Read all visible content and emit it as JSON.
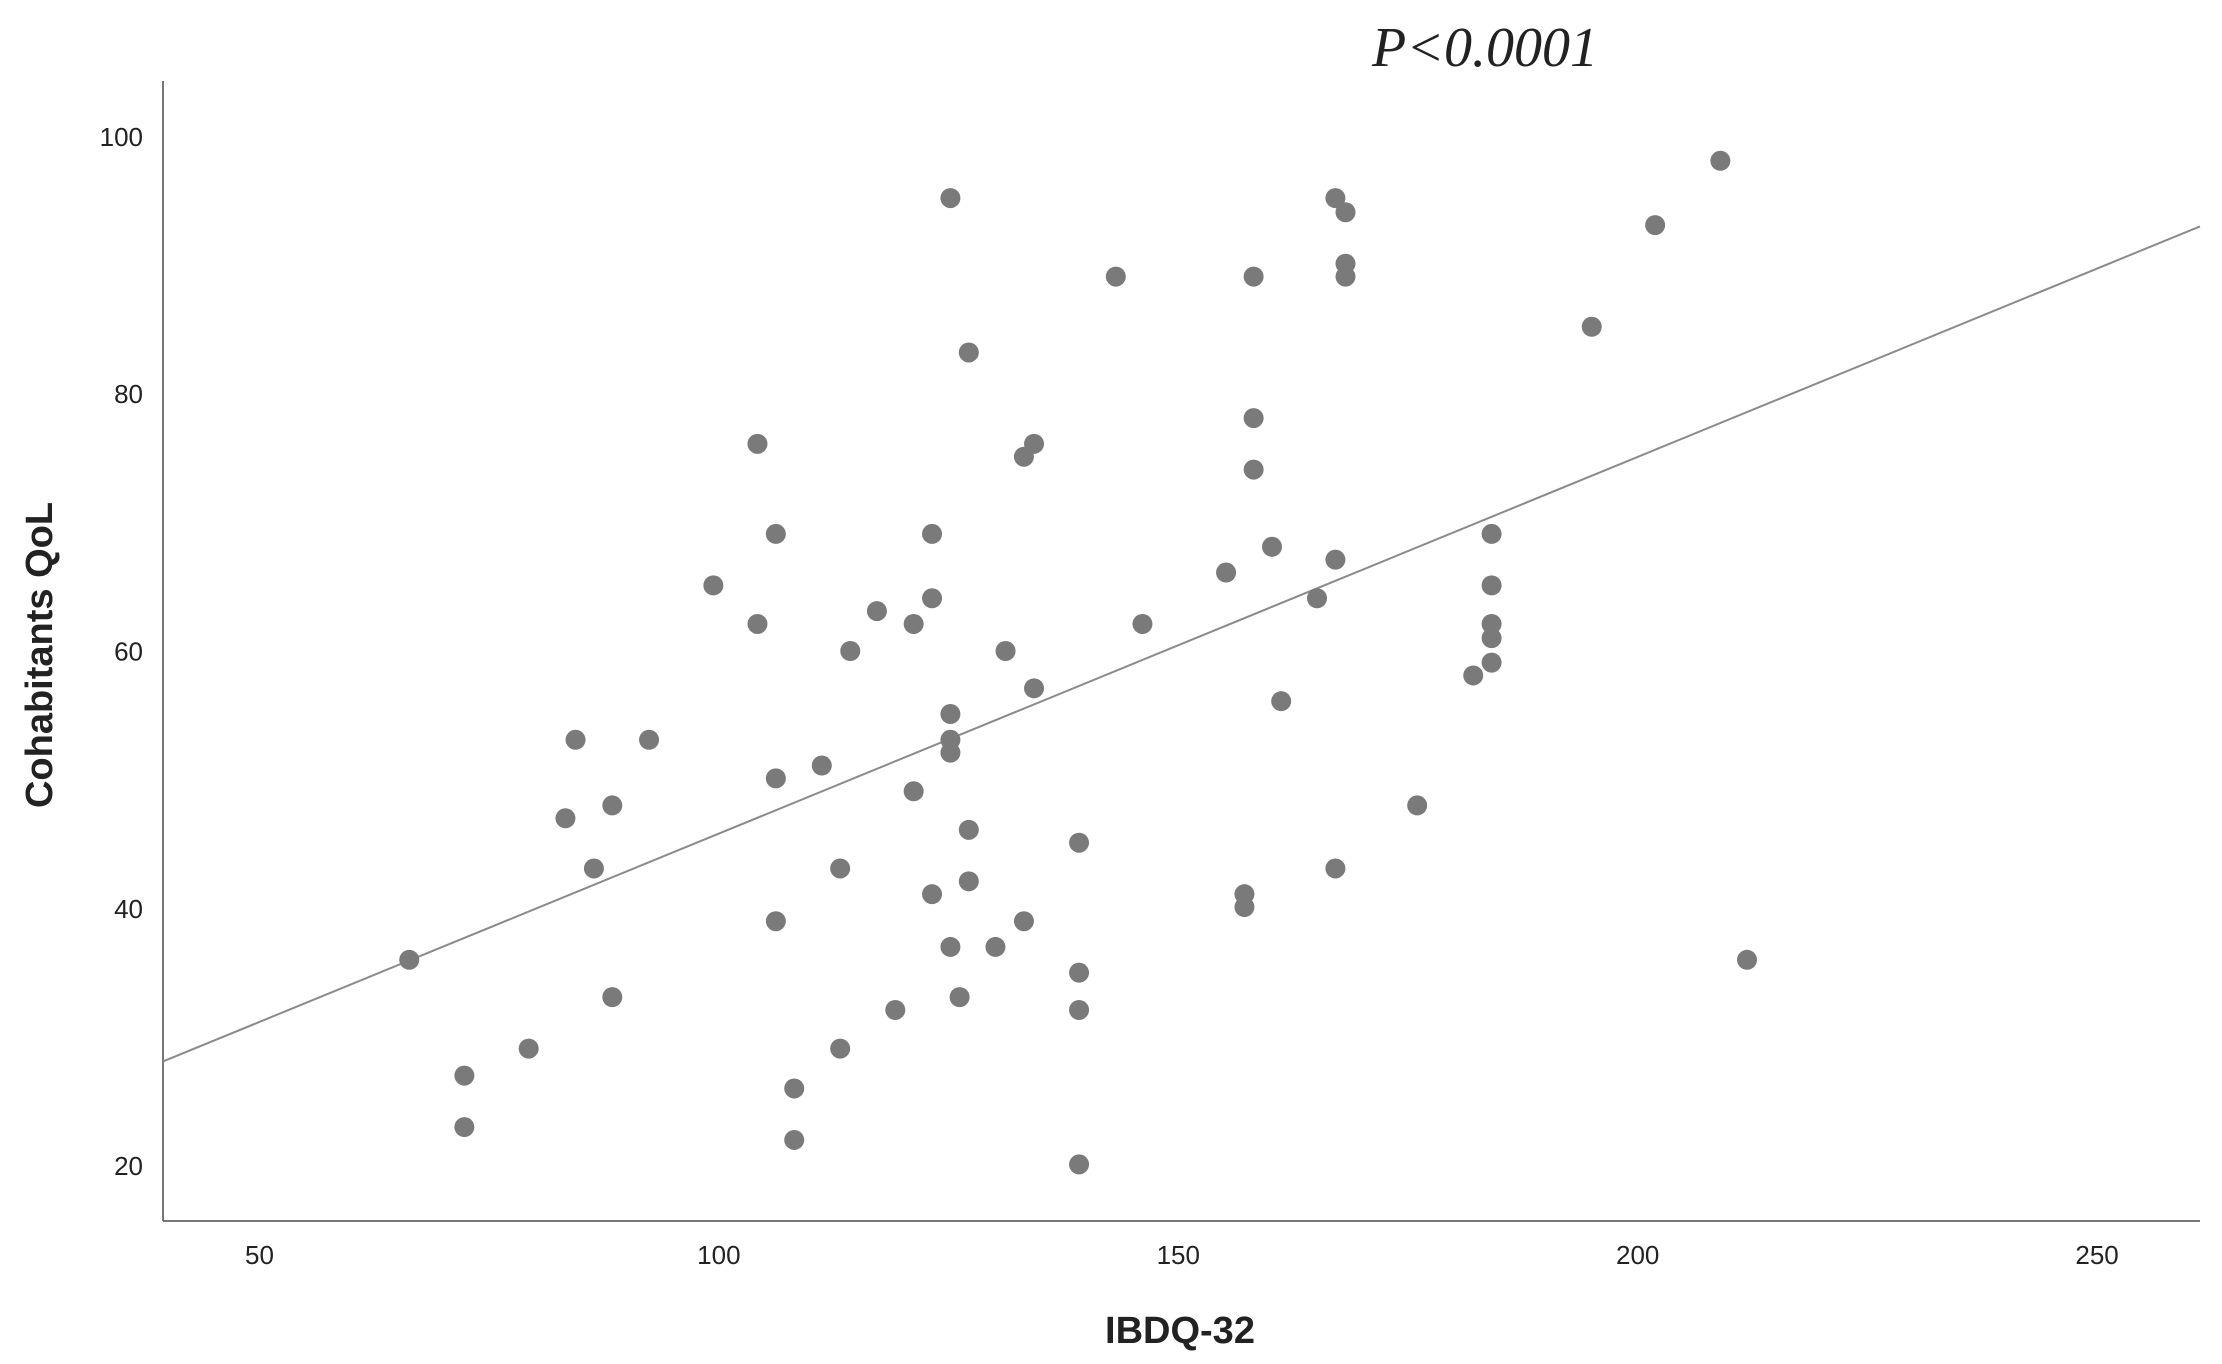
{
  "chart_data": {
    "type": "scatter",
    "title": "P<0.0001",
    "x_label": "IBDQ-32",
    "y_label": "Cohabitants QoL",
    "color": "#7a7a7a",
    "x": [
      66.3,
      72.3,
      72.3,
      79.3,
      83.3,
      84.4,
      86.4,
      88.4,
      88.4,
      92.4,
      99.4,
      104.2,
      104.2,
      106.2,
      106.2,
      106.2,
      108.2,
      108.2,
      111.2,
      113.2,
      113.2,
      114.3,
      117.2,
      119.2,
      121.2,
      121.2,
      123.2,
      123.2,
      123.2,
      125.2,
      125.2,
      125.2,
      125.2,
      125.2,
      126.2,
      127.2,
      127.2,
      127.2,
      130.1,
      131.2,
      133.2,
      134.3,
      133.2,
      134.3,
      139.2,
      139.2,
      139.2,
      139.2,
      143.2,
      146.1,
      155.2,
      157.2,
      157.2,
      158.2,
      158.2,
      158.2,
      160.2,
      161.2,
      165.1,
      167.1,
      168.2,
      168.2,
      168.2,
      167.1,
      167.1,
      176.0,
      182.1,
      184.1,
      184.1,
      184.1,
      184.1,
      184.1,
      195.0,
      201.9,
      209.0,
      211.9
    ],
    "y": [
      36.2,
      27.2,
      23.2,
      29.3,
      47.2,
      53.3,
      43.3,
      48.2,
      33.3,
      53.3,
      65.3,
      76.3,
      62.3,
      69.3,
      50.3,
      39.2,
      26.2,
      22.2,
      51.3,
      43.3,
      29.3,
      60.2,
      63.3,
      32.3,
      62.3,
      49.3,
      69.3,
      64.3,
      41.3,
      95.4,
      55.3,
      53.3,
      52.3,
      37.2,
      33.3,
      83.4,
      46.3,
      42.3,
      37.2,
      60.2,
      75.3,
      76.3,
      39.2,
      57.3,
      45.3,
      35.2,
      32.3,
      20.3,
      89.3,
      62.3,
      66.3,
      41.3,
      40.3,
      89.3,
      78.3,
      74.3,
      68.3,
      56.3,
      64.3,
      95.4,
      94.3,
      90.3,
      89.3,
      67.3,
      43.3,
      48.2,
      58.3,
      69.3,
      65.3,
      62.3,
      61.2,
      59.3,
      85.4,
      93.3,
      98.3,
      36.2
    ],
    "trend_line": {
      "color": "#8a8a8a",
      "x": [
        39.5,
        261.2
      ],
      "y": [
        28.3,
        93.2
      ]
    },
    "xlim": [
      39.5,
      261.2
    ],
    "ylim": [
      15.9,
      104.5
    ],
    "xticks": [
      50,
      100,
      150,
      200,
      250
    ],
    "yticks": [
      20,
      40,
      60,
      80,
      100
    ],
    "grid": false
  }
}
